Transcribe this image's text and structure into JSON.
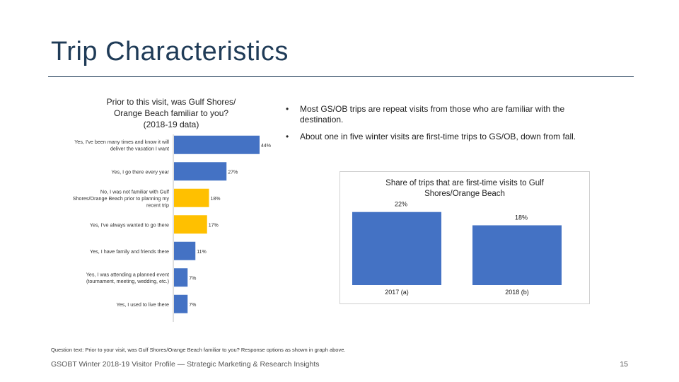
{
  "page": {
    "title": "Trip Characteristics",
    "bullets": [
      "Most GS/OB trips are repeat visits from those who are familiar with the destination.",
      "About one in five winter visits are first-time trips to GS/OB, down from fall."
    ],
    "bullet_char": "•",
    "footnote": "Question text: Prior to your visit, was Gulf Shores/Orange Beach familiar to you? Response options as shown in graph above.",
    "footer": "GSOBT Winter 2018-19 Visitor Profile — Strategic Marketing & Research Insights",
    "page_number": "15"
  },
  "chart_data": [
    {
      "type": "bar",
      "orientation": "horizontal",
      "title": "Prior to this visit, was Gulf Shores/ Orange Beach familiar to you? (2018-19 data)",
      "title_lines": [
        "Prior to this visit, was Gulf Shores/",
        "Orange Beach familiar to you?",
        "(2018-19 data)"
      ],
      "categories": [
        [
          "Yes, I've been many times and know it will",
          "deliver the vacation I want"
        ],
        [
          "Yes, I go there every year"
        ],
        [
          "No, I was not familiar with Gulf",
          "Shores/Orange Beach prior to planning my",
          "recent trip"
        ],
        [
          "Yes, I've always wanted to go there"
        ],
        [
          "Yes, I have family and friends there"
        ],
        [
          "Yes, I was attending a planned event",
          "(tournament, meeting, wedding, etc.)"
        ],
        [
          "Yes, I used to live there"
        ]
      ],
      "values": [
        44,
        27,
        18,
        17,
        11,
        7,
        7
      ],
      "value_labels": [
        "44%",
        "27%",
        "18%",
        "17%",
        "11%",
        "7%",
        "7%"
      ],
      "bar_colors": [
        "#4472c4",
        "#4472c4",
        "#ffc000",
        "#ffc000",
        "#4472c4",
        "#4472c4",
        "#4472c4"
      ],
      "xlim": [
        0,
        50
      ]
    },
    {
      "type": "bar",
      "orientation": "vertical",
      "title": "Share of trips that are first-time visits to Gulf Shores/Orange Beach",
      "title_lines": [
        "Share of trips that are first-time visits to Gulf",
        "Shores/Orange Beach"
      ],
      "categories": [
        "2017 (a)",
        "2018 (b)"
      ],
      "values": [
        22,
        18
      ],
      "value_labels": [
        "22%",
        "18%"
      ],
      "bar_color": "#4472c4",
      "ylim": [
        0,
        23
      ]
    }
  ],
  "colors": {
    "title": "#1f3b57",
    "blue": "#4472c4",
    "gold": "#ffc000"
  }
}
